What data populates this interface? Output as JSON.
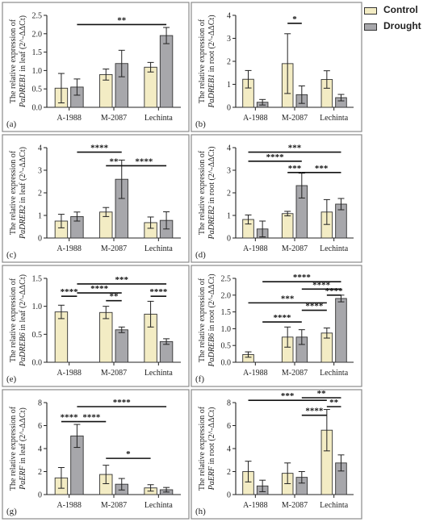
{
  "legend": {
    "control_label": "Control",
    "drought_label": "Drought"
  },
  "colors": {
    "control": "#f3ecc4",
    "drought": "#a7a7ab",
    "panel_border": "#8a8a8a",
    "axis": "#222222"
  },
  "chart_data": [
    {
      "panel": "(a)",
      "type": "bar",
      "ylabel_line1": "The relative expression of",
      "ylabel_gene": "PaDREB1",
      "ylabel_tissue": "leaf",
      "ylabel_unit": "(2^-ΔΔCt)",
      "categories": [
        "A-1988",
        "M-2087",
        "Lechinta"
      ],
      "ylim": [
        0,
        2.5
      ],
      "yticks": [
        "0.0",
        "0.5",
        "1.0",
        "1.5",
        "2.0",
        "2.5"
      ],
      "series": [
        {
          "name": "Control",
          "values": [
            0.52,
            0.89,
            1.09
          ],
          "err": [
            0.4,
            0.15,
            0.13
          ]
        },
        {
          "name": "Drought",
          "values": [
            0.55,
            1.19,
            1.95
          ],
          "err": [
            0.22,
            0.36,
            0.22
          ]
        }
      ],
      "sig": [
        {
          "label": "**",
          "y": 2.25,
          "from": [
            0,
            1
          ],
          "to": [
            2,
            1
          ]
        }
      ]
    },
    {
      "panel": "(b)",
      "type": "bar",
      "ylabel_line1": "The relative expression of",
      "ylabel_gene": "PaDREB1",
      "ylabel_tissue": "root",
      "ylabel_unit": "(2^-ΔΔCt)",
      "categories": [
        "A-1988",
        "M-2087",
        "Lechinta"
      ],
      "ylim": [
        0,
        4
      ],
      "yticks": [
        "0",
        "1",
        "2",
        "3",
        "4"
      ],
      "series": [
        {
          "name": "Control",
          "values": [
            1.22,
            1.9,
            1.21
          ],
          "err": [
            0.38,
            1.3,
            0.38
          ]
        },
        {
          "name": "Drought",
          "values": [
            0.22,
            0.55,
            0.42
          ],
          "err": [
            0.12,
            0.38,
            0.14
          ]
        }
      ],
      "sig": [
        {
          "label": "*",
          "y": 3.65,
          "from": [
            1,
            0
          ],
          "to": [
            1,
            1
          ]
        }
      ]
    },
    {
      "panel": "(c)",
      "type": "bar",
      "ylabel_line1": "The relative expression of",
      "ylabel_gene": "PaDREB2",
      "ylabel_tissue": "leaf",
      "ylabel_unit": "(2^-ΔΔCt)",
      "categories": [
        "A-1988",
        "M-2087",
        "Lechinta"
      ],
      "ylim": [
        0,
        4
      ],
      "yticks": [
        "0",
        "1",
        "2",
        "3",
        "4"
      ],
      "series": [
        {
          "name": "Control",
          "values": [
            0.75,
            1.15,
            0.68
          ],
          "err": [
            0.3,
            0.2,
            0.25
          ]
        },
        {
          "name": "Drought",
          "values": [
            0.95,
            2.6,
            0.78
          ],
          "err": [
            0.2,
            0.85,
            0.38
          ]
        }
      ],
      "sig": [
        {
          "label": "****",
          "y": 3.8,
          "from": [
            0,
            1
          ],
          "to": [
            1,
            1
          ]
        },
        {
          "label": "**",
          "y": 3.2,
          "from": [
            1,
            0
          ],
          "to": [
            1,
            1
          ]
        },
        {
          "label": "****",
          "y": 3.2,
          "from": [
            1,
            1
          ],
          "to": [
            2,
            1
          ]
        }
      ]
    },
    {
      "panel": "(d)",
      "type": "bar",
      "ylabel_line1": "The relative expression of",
      "ylabel_gene": "PaDREB2",
      "ylabel_tissue": "root",
      "ylabel_unit": "(2^-ΔΔCt)",
      "categories": [
        "A-1988",
        "M-2087",
        "Lechinta"
      ],
      "ylim": [
        0,
        4
      ],
      "yticks": [
        "0",
        "1",
        "2",
        "3",
        "4"
      ],
      "series": [
        {
          "name": "Control",
          "values": [
            0.82,
            1.08,
            1.15
          ],
          "err": [
            0.2,
            0.1,
            0.55
          ]
        },
        {
          "name": "Drought",
          "values": [
            0.4,
            2.32,
            1.5
          ],
          "err": [
            0.35,
            0.55,
            0.25
          ]
        }
      ],
      "sig": [
        {
          "label": "***",
          "y": 3.8,
          "from": [
            0,
            0
          ],
          "to": [
            2,
            1
          ]
        },
        {
          "label": "****",
          "y": 3.4,
          "from": [
            0,
            0
          ],
          "to": [
            1,
            1
          ]
        },
        {
          "label": "***",
          "y": 2.9,
          "from": [
            1,
            0
          ],
          "to": [
            1,
            1
          ]
        },
        {
          "label": "***",
          "y": 2.9,
          "from": [
            1,
            1
          ],
          "to": [
            2,
            1
          ]
        }
      ]
    },
    {
      "panel": "(e)",
      "type": "bar",
      "ylabel_line1": "The relative expression of",
      "ylabel_gene": "PaDREB6",
      "ylabel_tissue": "leaf",
      "ylabel_unit": "(2^-ΔΔCt)",
      "categories": [
        "A-1988",
        "M-2087",
        "Lechinta"
      ],
      "ylim": [
        0,
        1.5
      ],
      "yticks": [
        "0.0",
        "0.5",
        "1.0",
        "1.5"
      ],
      "series": [
        {
          "name": "Control",
          "values": [
            0.9,
            0.89,
            0.86
          ],
          "err": [
            0.12,
            0.11,
            0.23
          ]
        },
        {
          "name": "Drought",
          "values": [
            0.0,
            0.58,
            0.37
          ],
          "err": [
            0,
            0.05,
            0.05
          ]
        }
      ],
      "sig": [
        {
          "label": "****",
          "y": 1.18,
          "from": [
            0,
            0
          ],
          "to": [
            0,
            1
          ]
        },
        {
          "label": "***",
          "y": 1.4,
          "from": [
            0,
            1
          ],
          "to": [
            2,
            1
          ]
        },
        {
          "label": "****",
          "y": 1.24,
          "from": [
            0,
            1
          ],
          "to": [
            1,
            1
          ]
        },
        {
          "label": "**",
          "y": 1.1,
          "from": [
            1,
            0
          ],
          "to": [
            1,
            1
          ]
        },
        {
          "label": "****",
          "y": 1.18,
          "from": [
            2,
            0
          ],
          "to": [
            2,
            1
          ]
        }
      ]
    },
    {
      "panel": "(f)",
      "type": "bar",
      "ylabel_line1": "The relative expression of",
      "ylabel_gene": "PaDREB6",
      "ylabel_tissue": "root",
      "ylabel_unit": "(2^-ΔΔCt)",
      "categories": [
        "A-1988",
        "M-2087",
        "Lechinta"
      ],
      "ylim": [
        0,
        2.5
      ],
      "yticks": [
        "0.0",
        "0.5",
        "1.0",
        "1.5",
        "2.0",
        "2.5"
      ],
      "series": [
        {
          "name": "Control",
          "values": [
            0.23,
            0.75,
            0.87
          ],
          "err": [
            0.08,
            0.3,
            0.15
          ]
        },
        {
          "name": "Drought",
          "values": [
            0.0,
            0.75,
            1.9
          ],
          "err": [
            0,
            0.22,
            0.1
          ]
        }
      ],
      "sig": [
        {
          "label": "****",
          "y": 2.4,
          "from": [
            0,
            1
          ],
          "to": [
            2,
            1
          ]
        },
        {
          "label": "****",
          "y": 2.18,
          "from": [
            1,
            1
          ],
          "to": [
            2,
            1
          ]
        },
        {
          "label": "****",
          "y": 2.0,
          "from": [
            2,
            0
          ],
          "to": [
            2,
            1
          ]
        },
        {
          "label": "***",
          "y": 1.77,
          "from": [
            0,
            0
          ],
          "to": [
            2,
            0
          ]
        },
        {
          "label": "****",
          "y": 1.55,
          "from": [
            1,
            1
          ],
          "to": [
            2,
            0
          ]
        },
        {
          "label": "****",
          "y": 1.2,
          "from": [
            0,
            1
          ],
          "to": [
            1,
            1
          ]
        }
      ]
    },
    {
      "panel": "(g)",
      "type": "bar",
      "ylabel_line1": "The relative expression of",
      "ylabel_gene": "PaERF",
      "ylabel_tissue": "leaf",
      "ylabel_unit": "(2^-ΔΔCt)",
      "categories": [
        "A-1988",
        "M-2087",
        "Lechinta"
      ],
      "ylim": [
        0,
        8
      ],
      "yticks": [
        "0",
        "2",
        "4",
        "6",
        "8"
      ],
      "series": [
        {
          "name": "Control",
          "values": [
            1.45,
            1.75,
            0.58
          ],
          "err": [
            0.9,
            0.8,
            0.28
          ]
        },
        {
          "name": "Drought",
          "values": [
            5.1,
            0.9,
            0.42
          ],
          "err": [
            1.0,
            0.5,
            0.2
          ]
        }
      ],
      "sig": [
        {
          "label": "****",
          "y": 7.65,
          "from": [
            0,
            1
          ],
          "to": [
            2,
            1
          ]
        },
        {
          "label": "****",
          "y": 6.35,
          "from": [
            0,
            0
          ],
          "to": [
            0,
            1
          ]
        },
        {
          "label": "****",
          "y": 6.35,
          "from": [
            0,
            1
          ],
          "to": [
            1,
            0
          ]
        },
        {
          "label": "*",
          "y": 3.15,
          "from": [
            1,
            0
          ],
          "to": [
            2,
            0
          ]
        }
      ]
    },
    {
      "panel": "(h)",
      "type": "bar",
      "ylabel_line1": "The relative expression of",
      "ylabel_gene": "PaERF",
      "ylabel_tissue": "root",
      "ylabel_unit": "(2^-ΔΔCt)",
      "categories": [
        "A-1988",
        "M-2087",
        "Lechinta"
      ],
      "ylim": [
        0,
        8
      ],
      "yticks": [
        "0",
        "2",
        "4",
        "6",
        "8"
      ],
      "series": [
        {
          "name": "Control",
          "values": [
            2.0,
            1.85,
            5.6
          ],
          "err": [
            0.9,
            0.9,
            1.8
          ]
        },
        {
          "name": "Drought",
          "values": [
            0.75,
            1.5,
            2.75
          ],
          "err": [
            0.5,
            0.5,
            0.7
          ]
        }
      ],
      "sig": [
        {
          "label": "**",
          "y": 8.65,
          "from": [
            1,
            1
          ],
          "to": [
            2,
            1
          ]
        },
        {
          "label": "***",
          "y": 8.2,
          "from": [
            0,
            0
          ],
          "to": [
            2,
            0
          ]
        },
        {
          "label": "**",
          "y": 7.65,
          "from": [
            2,
            0
          ],
          "to": [
            2,
            1
          ]
        },
        {
          "label": "****",
          "y": 6.9,
          "from": [
            1,
            1
          ],
          "to": [
            2,
            0
          ]
        }
      ]
    }
  ]
}
